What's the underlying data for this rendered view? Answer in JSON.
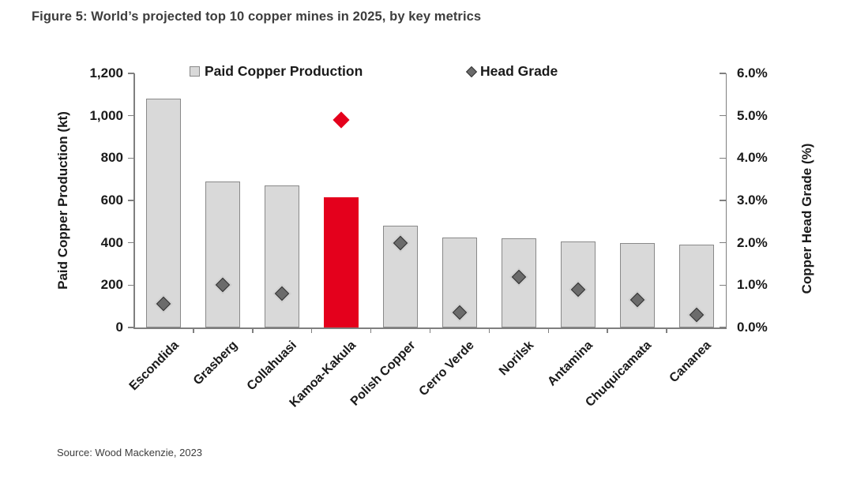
{
  "figure": {
    "title": "Figure 5: World’s projected top 10 copper mines in 2025, by key metrics",
    "source": "Source: Wood Mackenzie, 2023"
  },
  "colors": {
    "bar_fill": "#d9d9d9",
    "bar_border": "#898989",
    "highlight_red": "#e4001c",
    "marker_fill": "#6b6b6b",
    "marker_border": "#333333",
    "marker_halo": "#cfcfcf",
    "axis_line": "#7f7f7f",
    "text": "#1a1a1a"
  },
  "chart_data": {
    "type": "bar",
    "title": "Figure 5: World’s projected top 10 copper mines in 2025, by key metrics",
    "categories": [
      "Escondida",
      "Grasberg",
      "Collahuasi",
      "Kamoa-Kakula",
      "Polish Copper",
      "Cerro Verde",
      "Norilsk",
      "Antamina",
      "Chuquicamata",
      "Cananea"
    ],
    "series": [
      {
        "name": "Paid Copper Production",
        "type": "bar",
        "axis": "left",
        "unit": "kt",
        "values": [
          1080,
          690,
          670,
          615,
          480,
          425,
          420,
          405,
          398,
          393
        ]
      },
      {
        "name": "Head Grade",
        "type": "scatter",
        "axis": "right",
        "unit": "%",
        "values": [
          0.55,
          1.0,
          0.8,
          4.9,
          2.0,
          0.35,
          1.2,
          0.9,
          0.65,
          0.3
        ]
      }
    ],
    "highlight_category": "Kamoa-Kakula",
    "left_axis": {
      "label": "Paid Copper Production (kt)",
      "min": 0,
      "max": 1200,
      "tick_labels": [
        "0",
        "200",
        "400",
        "600",
        "800",
        "1,000",
        "1,200"
      ]
    },
    "right_axis": {
      "label": "Copper Head Grade (%)",
      "min": 0,
      "max": 6,
      "tick_labels": [
        "0.0%",
        "1.0%",
        "2.0%",
        "3.0%",
        "4.0%",
        "5.0%",
        "6.0%"
      ]
    },
    "legend_position": "top-inside",
    "grid": false,
    "xlabel_rotation_deg": -45
  }
}
